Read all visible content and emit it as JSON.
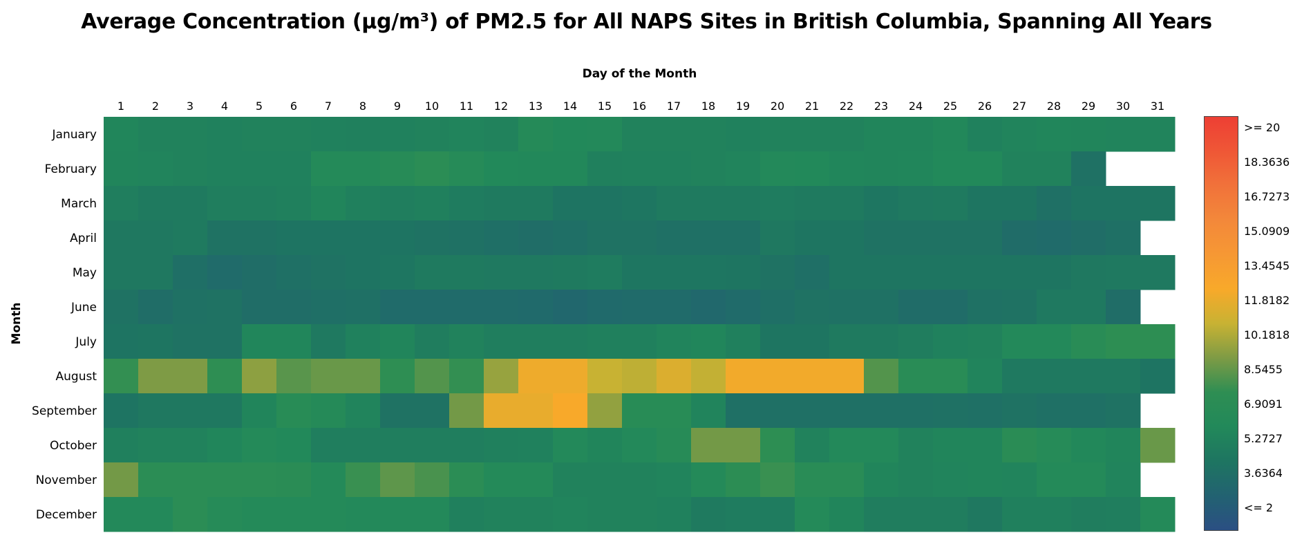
{
  "chart_data": {
    "type": "heatmap",
    "title": "Average Concentration (µg/m³) of PM2.5 for All NAPS Sites in British Columbia, Spanning All Years",
    "xlabel": "Day of the Month",
    "ylabel": "Month",
    "x": [
      "1",
      "2",
      "3",
      "4",
      "5",
      "6",
      "7",
      "8",
      "9",
      "10",
      "11",
      "12",
      "13",
      "14",
      "15",
      "16",
      "17",
      "18",
      "19",
      "20",
      "21",
      "22",
      "23",
      "24",
      "25",
      "26",
      "27",
      "28",
      "29",
      "30",
      "31"
    ],
    "y": [
      "January",
      "February",
      "March",
      "April",
      "May",
      "June",
      "July",
      "August",
      "September",
      "October",
      "November",
      "December"
    ],
    "values": [
      [
        6.3,
        6.0,
        6.0,
        5.9,
        6.0,
        6.0,
        5.9,
        5.8,
        5.9,
        6.0,
        6.1,
        6.0,
        6.9,
        6.5,
        6.6,
        6.0,
        6.0,
        6.0,
        5.9,
        6.0,
        6.0,
        6.0,
        6.2,
        6.2,
        6.4,
        5.9,
        6.1,
        6.3,
        6.2,
        6.1,
        6.1
      ],
      [
        6.2,
        6.1,
        6.0,
        5.9,
        5.9,
        5.9,
        6.7,
        6.8,
        7.1,
        7.6,
        7.0,
        6.5,
        6.4,
        6.4,
        5.8,
        5.9,
        5.9,
        6.0,
        6.1,
        6.6,
        6.5,
        6.3,
        6.2,
        6.3,
        6.5,
        6.5,
        6.0,
        6.0,
        4.7,
        null,
        null
      ],
      [
        5.7,
        5.4,
        5.4,
        5.7,
        5.7,
        5.8,
        6.2,
        5.8,
        5.7,
        5.8,
        5.5,
        5.4,
        5.4,
        4.9,
        4.9,
        5.1,
        5.4,
        5.4,
        5.4,
        5.5,
        5.4,
        5.4,
        5.1,
        5.3,
        5.4,
        5.0,
        5.0,
        4.6,
        4.9,
        4.9,
        5.0
      ],
      [
        5.2,
        5.2,
        5.4,
        4.8,
        4.8,
        4.9,
        4.9,
        4.9,
        4.9,
        4.8,
        4.7,
        4.5,
        4.4,
        4.5,
        4.8,
        4.8,
        4.6,
        4.6,
        4.6,
        5.2,
        5.0,
        5.0,
        4.8,
        4.8,
        4.8,
        4.8,
        4.3,
        4.2,
        4.4,
        4.6,
        null
      ],
      [
        5.2,
        5.2,
        4.5,
        4.2,
        4.4,
        4.6,
        4.8,
        4.9,
        5.1,
        5.4,
        5.4,
        5.3,
        5.3,
        5.4,
        5.5,
        5.1,
        5.1,
        5.1,
        5.0,
        4.8,
        4.5,
        5.0,
        5.0,
        5.0,
        5.0,
        5.0,
        5.0,
        5.0,
        5.2,
        5.3,
        5.3
      ],
      [
        4.8,
        4.4,
        4.7,
        4.8,
        4.4,
        4.4,
        4.5,
        4.6,
        4.2,
        4.2,
        4.2,
        4.2,
        4.1,
        3.9,
        4.1,
        4.2,
        4.2,
        4.0,
        4.2,
        4.5,
        4.8,
        4.7,
        4.7,
        4.3,
        4.3,
        4.7,
        4.8,
        5.3,
        5.3,
        4.4,
        null
      ],
      [
        4.9,
        5.0,
        4.8,
        4.8,
        6.3,
        6.3,
        5.3,
        5.9,
        6.2,
        5.6,
        6.0,
        5.7,
        5.7,
        5.7,
        5.8,
        5.8,
        6.1,
        6.3,
        5.8,
        5.0,
        5.0,
        5.4,
        5.4,
        5.6,
        5.9,
        6.0,
        6.6,
        6.6,
        7.4,
        7.9,
        7.9
      ],
      [
        8.1,
        9.5,
        9.5,
        8.0,
        9.8,
        8.8,
        9.1,
        9.1,
        8.0,
        8.7,
        8.1,
        10.0,
        12.2,
        12.2,
        11.0,
        10.8,
        11.6,
        10.9,
        12.3,
        12.3,
        12.3,
        12.3,
        8.7,
        7.4,
        7.4,
        6.1,
        5.3,
        5.3,
        5.3,
        5.3,
        4.9
      ],
      [
        4.9,
        5.2,
        5.2,
        5.2,
        6.2,
        7.3,
        6.9,
        6.1,
        4.8,
        4.8,
        9.3,
        12.0,
        12.0,
        12.5,
        9.9,
        7.3,
        7.3,
        6.1,
        4.6,
        4.6,
        4.6,
        4.6,
        4.6,
        4.6,
        4.7,
        4.6,
        4.8,
        4.6,
        4.6,
        4.8,
        null
      ],
      [
        5.8,
        6.0,
        6.0,
        6.3,
        6.7,
        6.5,
        5.7,
        5.7,
        5.7,
        5.7,
        5.7,
        5.8,
        5.9,
        6.6,
        6.2,
        6.6,
        7.1,
        9.3,
        9.3,
        7.9,
        6.0,
        6.6,
        6.6,
        6.0,
        6.2,
        6.2,
        7.5,
        7.0,
        6.4,
        6.2,
        9.1
      ],
      [
        9.3,
        7.6,
        7.6,
        7.6,
        7.6,
        7.5,
        6.8,
        8.2,
        8.9,
        8.5,
        7.6,
        6.7,
        6.7,
        6.0,
        6.0,
        6.0,
        6.1,
        6.8,
        7.7,
        8.2,
        7.4,
        7.4,
        6.2,
        6.0,
        6.1,
        6.2,
        6.1,
        6.8,
        6.8,
        6.1,
        null
      ],
      [
        6.6,
        6.6,
        7.6,
        7.0,
        6.8,
        6.8,
        6.8,
        6.6,
        6.6,
        6.6,
        5.8,
        6.0,
        6.0,
        6.1,
        6.0,
        6.0,
        5.9,
        5.4,
        5.5,
        5.5,
        6.7,
        6.2,
        5.6,
        5.6,
        5.6,
        5.2,
        5.8,
        5.8,
        5.6,
        5.7,
        6.7
      ]
    ],
    "color_scale": {
      "min": 2,
      "max": 20,
      "stops": [
        "#2b4f83",
        "#226271",
        "#1e7561",
        "#22895a",
        "#2e8e53",
        "#7e9b45",
        "#c8b233",
        "#f8a92a",
        "#f69834",
        "#f3883a",
        "#f1723a",
        "#ef5736",
        "#ed3f34"
      ]
    },
    "legend": {
      "placement": "right",
      "labels": [
        ">= 20",
        "18.3636",
        "16.7273",
        "15.0909",
        "13.4545",
        "11.8182",
        "10.1818",
        "8.5455",
        "6.9091",
        "5.2727",
        "3.6364",
        "<= 2"
      ]
    }
  }
}
